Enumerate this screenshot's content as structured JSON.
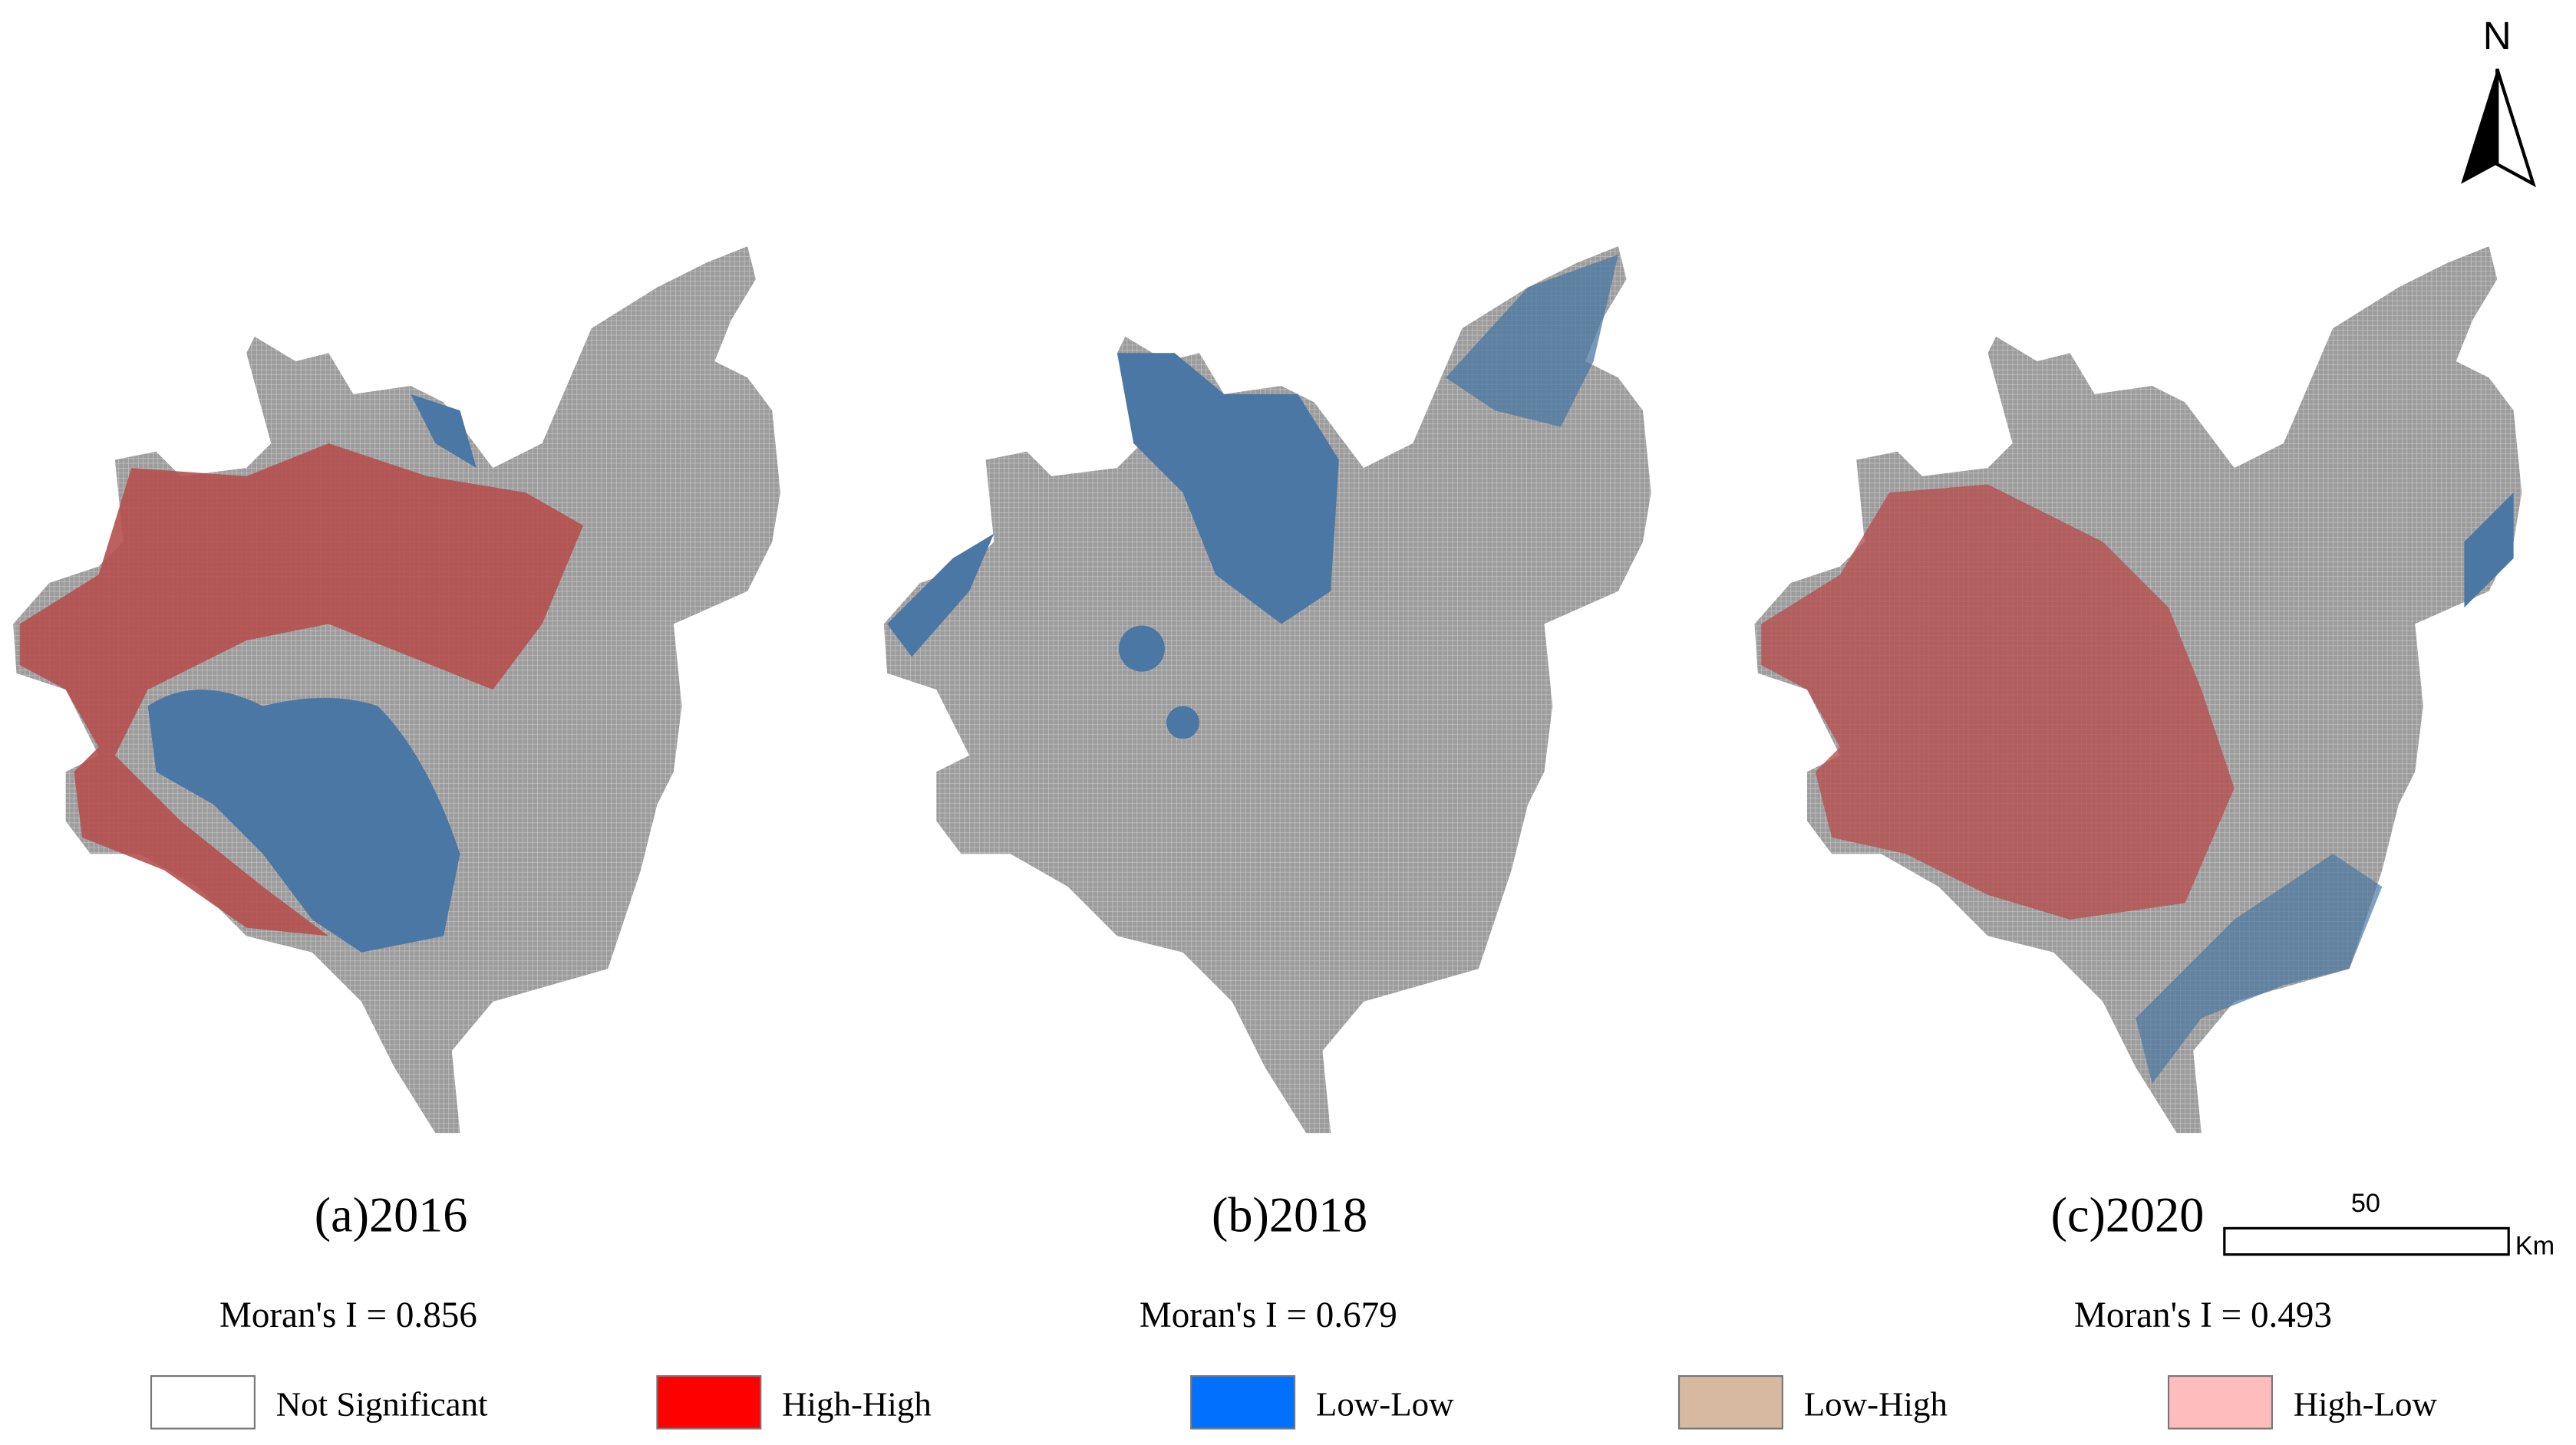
{
  "panels": [
    {
      "label": "(a)2016",
      "moran": "Moran's I = 0.856"
    },
    {
      "label": "(b)2018",
      "moran": "Moran's I = 0.679"
    },
    {
      "label": "(c)2020",
      "moran": "Moran's I = 0.493"
    }
  ],
  "north": "N",
  "scale_bar": {
    "label": "50",
    "unit": "Km"
  },
  "legend": [
    {
      "label": "Not Significant",
      "color": "#ffffff"
    },
    {
      "label": "High-High",
      "color": "#ff0000"
    },
    {
      "label": "Low-Low",
      "color": "#0070ff"
    },
    {
      "label": "Low-High",
      "color": "#d7b8a0"
    },
    {
      "label": "High-Low",
      "color": "#ffbcbc"
    }
  ]
}
